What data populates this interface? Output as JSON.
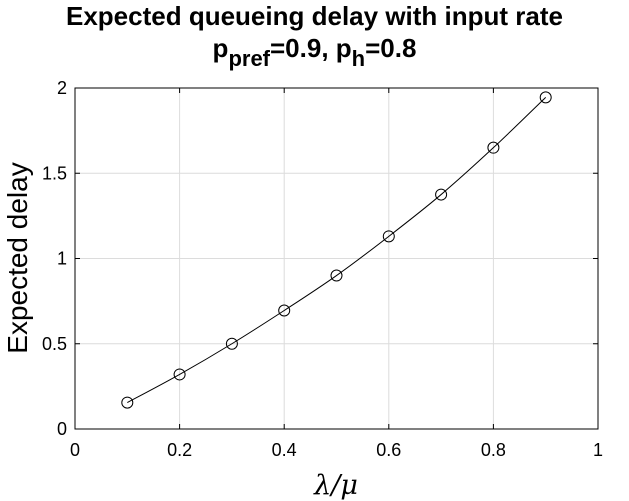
{
  "title_line1": "Expected queueing delay with input rate",
  "title_line2": {
    "p1_base": "p",
    "p1_sub": "pref",
    "p1_value": "=0.9, ",
    "p2_base": "p",
    "p2_sub": "h",
    "p2_value": "=0.8"
  },
  "chart_data": {
    "type": "line",
    "xlabel": "λ/μ",
    "ylabel": "Expected delay",
    "xlim": [
      0,
      1
    ],
    "ylim": [
      0,
      2
    ],
    "xticks": [
      0,
      0.2,
      0.4,
      0.6,
      0.8,
      1
    ],
    "xtick_labels": [
      "0",
      "0.2",
      "0.4",
      "0.6",
      "0.8",
      "1"
    ],
    "yticks": [
      0,
      0.5,
      1,
      1.5,
      2
    ],
    "ytick_labels": [
      "0",
      "0.5",
      "1",
      "1.5",
      "2"
    ],
    "grid": true,
    "marker": "circle",
    "line_color": "#000000",
    "x": [
      0.1,
      0.2,
      0.3,
      0.4,
      0.5,
      0.6,
      0.7,
      0.8,
      0.9
    ],
    "series": [
      {
        "values": [
          0.155,
          0.32,
          0.5,
          0.695,
          0.9,
          1.13,
          1.375,
          1.65,
          1.945
        ]
      }
    ]
  }
}
